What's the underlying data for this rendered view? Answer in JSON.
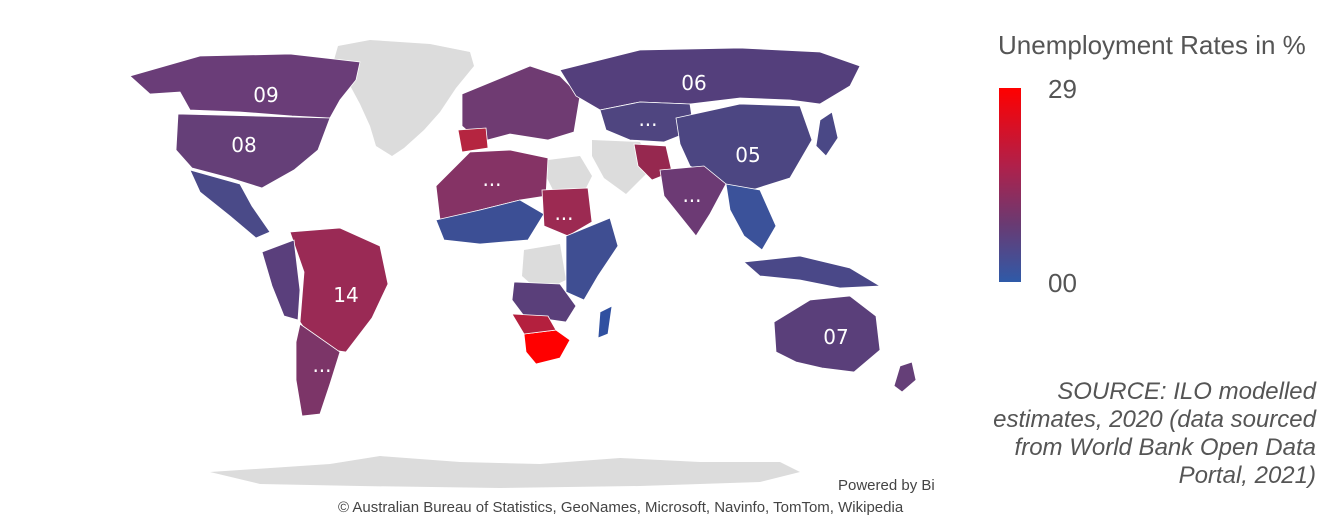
{
  "legend": {
    "title": "Unemployment Rates in %",
    "max_label": "29",
    "min_label": "00",
    "color_high": "#ff0000",
    "color_low": "#2f5aa8"
  },
  "source_note": "SOURCE: ILO modelled estimates, 2020 (data sourced from World Bank Open Data Portal, 2021)",
  "credits": {
    "powered_by": "Powered by Bing",
    "attribution": "© Australian Bureau of Statistics, GeoNames, Microsoft, Navinfo, TomTom, Wikipedia"
  },
  "colors": {
    "no_data": "#dcdcdc",
    "border": "#ffffff"
  },
  "regions": [
    {
      "name": "Canada",
      "label": "09",
      "value": 9,
      "color": "#6a3d78"
    },
    {
      "name": "United States",
      "label": "08",
      "value": 8,
      "color": "#653f78"
    },
    {
      "name": "Brazil",
      "label": "14",
      "value": 14,
      "color": "#9a2a55"
    },
    {
      "name": "Argentina",
      "label": "...",
      "color": "#7c3568"
    },
    {
      "name": "Algeria / North Africa",
      "label": "...",
      "color": "#853365"
    },
    {
      "name": "Sudan",
      "label": "...",
      "color": "#9c2a52"
    },
    {
      "name": "Russia",
      "label": "06",
      "value": 6,
      "color": "#543f7c"
    },
    {
      "name": "Kazakhstan",
      "label": "...",
      "color": "#4f4580"
    },
    {
      "name": "China",
      "label": "05",
      "value": 5,
      "color": "#4c4682"
    },
    {
      "name": "India",
      "label": "...",
      "color": "#6c3a74"
    },
    {
      "name": "Australia",
      "label": "07",
      "value": 7,
      "color": "#5a3f7a"
    },
    {
      "name": "South Africa",
      "value": 29,
      "color": "#ff0000"
    }
  ]
}
